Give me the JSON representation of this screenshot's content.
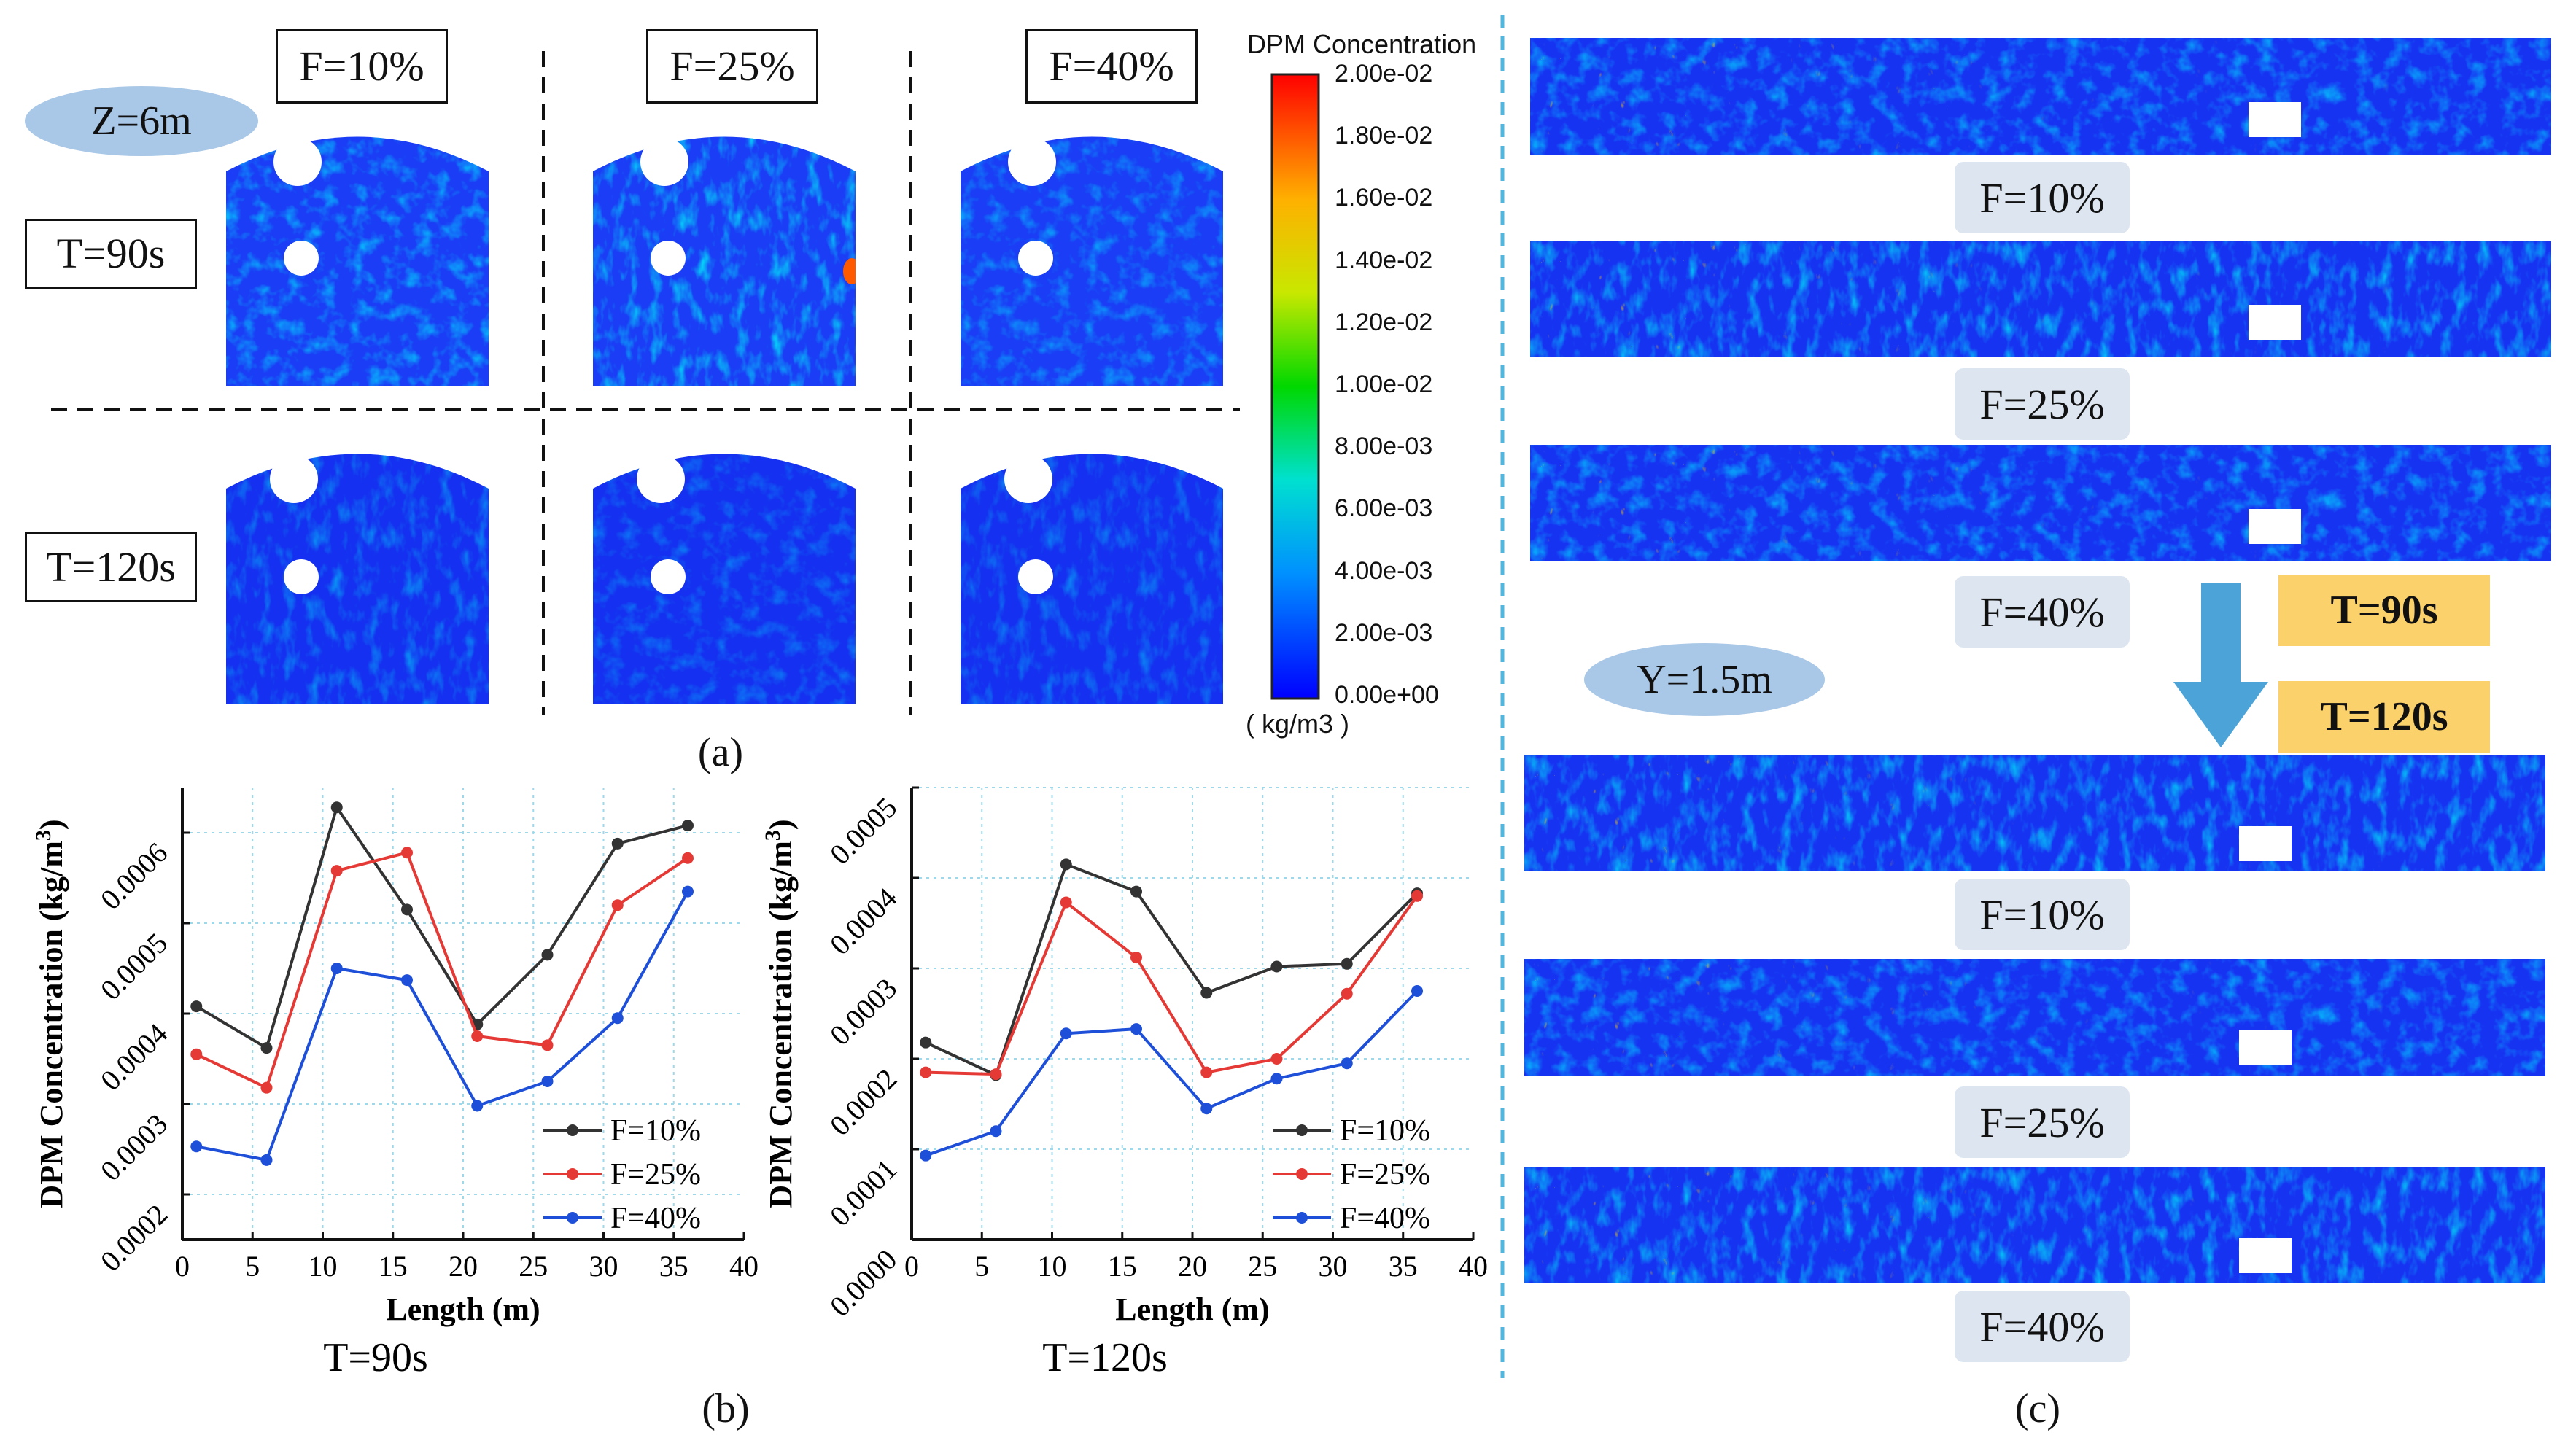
{
  "panel_a": {
    "location_label": "Z=6m",
    "columns": [
      "F=10%",
      "F=25%",
      "F=40%"
    ],
    "rows": [
      "T=90s",
      "T=120s"
    ],
    "caption": "(a)"
  },
  "colorbar": {
    "title": "DPM Concentration",
    "unit": "( kg/m3 )",
    "ticks": [
      "2.00e-02",
      "1.80e-02",
      "1.60e-02",
      "1.40e-02",
      "1.20e-02",
      "1.00e-02",
      "8.00e-03",
      "6.00e-03",
      "4.00e-03",
      "2.00e-03",
      "0.00e+00"
    ]
  },
  "panel_c": {
    "location_label": "Y=1.5m",
    "strip_labels": [
      "F=10%",
      "F=25%",
      "F=40%",
      "F=10%",
      "F=25%",
      "F=40%"
    ],
    "time_from": "T=90s",
    "time_to": "T=120s",
    "caption": "(c)"
  },
  "panel_b_caption": "(b)",
  "chart_data": [
    {
      "type": "line",
      "title": "T=90s",
      "xlabel": "Length (m)",
      "ylabel": "DPM Concentration (kg/m³)",
      "ylabel_main": "DPM Concentration (kg/m",
      "ylabel_sup": "3",
      "ylabel_close": ")",
      "xlim": [
        0,
        40
      ],
      "ylim": [
        0.00015,
        0.00065
      ],
      "xticks": [
        0,
        5,
        10,
        15,
        20,
        25,
        30,
        35,
        40
      ],
      "xtick_labels": [
        "0",
        "5",
        "10",
        "15",
        "20",
        "25",
        "30",
        "35",
        "40"
      ],
      "yticks": [
        0.0002,
        0.0003,
        0.0004,
        0.0005,
        0.0006
      ],
      "ytick_labels": [
        "0.0002",
        "0.0003",
        "0.0004",
        "0.0005",
        "0.0006"
      ],
      "grid": true,
      "x": [
        1,
        6,
        11,
        16,
        21,
        26,
        31,
        36
      ],
      "series": [
        {
          "name": "F=10%",
          "color": "#333333",
          "values": [
            0.000408,
            0.000362,
            0.000628,
            0.000515,
            0.000388,
            0.000465,
            0.000588,
            0.000608
          ]
        },
        {
          "name": "F=25%",
          "color": "#e53935",
          "values": [
            0.000355,
            0.000318,
            0.000558,
            0.000578,
            0.000375,
            0.000365,
            0.00052,
            0.000572
          ]
        },
        {
          "name": "F=40%",
          "color": "#1e4fd8",
          "values": [
            0.000253,
            0.000238,
            0.00045,
            0.000437,
            0.000298,
            0.000325,
            0.000395,
            0.000535
          ]
        }
      ]
    },
    {
      "type": "line",
      "title": "T=120s",
      "xlabel": "Length (m)",
      "ylabel": "DPM Concentration (kg/m³)",
      "ylabel_main": "DPM Concentration (kg/m",
      "ylabel_sup": "3",
      "ylabel_close": ")",
      "xlim": [
        0,
        40
      ],
      "ylim": [
        0.0,
        0.0005
      ],
      "xticks": [
        0,
        5,
        10,
        15,
        20,
        25,
        30,
        35,
        40
      ],
      "xtick_labels": [
        "0",
        "5",
        "10",
        "15",
        "20",
        "25",
        "30",
        "35",
        "40"
      ],
      "yticks": [
        0.0,
        0.0001,
        0.0002,
        0.0003,
        0.0004,
        0.0005
      ],
      "ytick_labels": [
        "0.0000",
        "0.0001",
        "0.0002",
        "0.0003",
        "0.0004",
        "0.0005"
      ],
      "grid": true,
      "x": [
        1,
        6,
        11,
        16,
        21,
        26,
        31,
        36
      ],
      "series": [
        {
          "name": "F=10%",
          "color": "#333333",
          "values": [
            0.000218,
            0.000182,
            0.000415,
            0.000385,
            0.000273,
            0.000302,
            0.000305,
            0.000383
          ]
        },
        {
          "name": "F=25%",
          "color": "#e53935",
          "values": [
            0.000185,
            0.000183,
            0.000373,
            0.000312,
            0.000185,
            0.0002,
            0.000272,
            0.00038
          ]
        },
        {
          "name": "F=40%",
          "color": "#1e4fd8",
          "values": [
            9.3e-05,
            0.00012,
            0.000228,
            0.000233,
            0.000145,
            0.000178,
            0.000195,
            0.000275
          ]
        }
      ]
    }
  ]
}
